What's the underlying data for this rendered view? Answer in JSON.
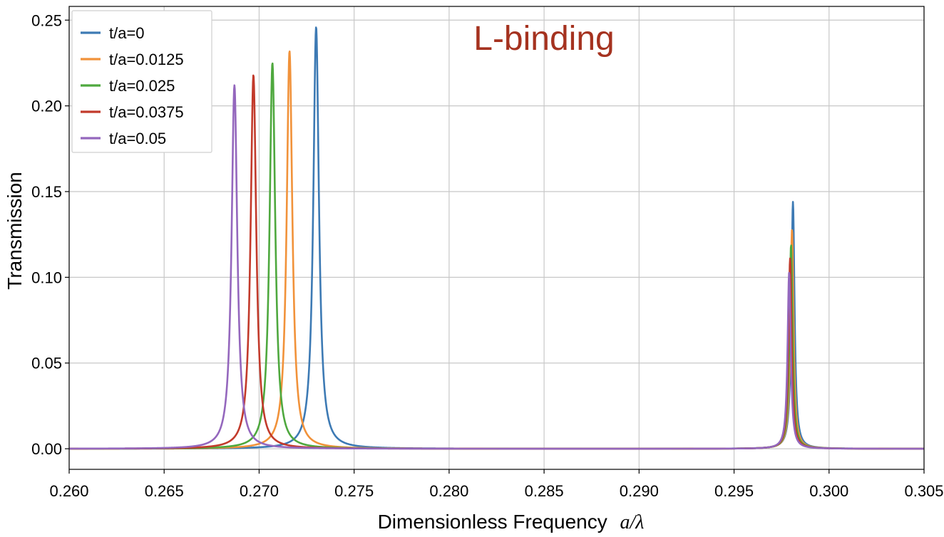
{
  "chart_data": {
    "type": "line",
    "title": "",
    "annotation": {
      "text": "L-binding",
      "color": "#a5321f"
    },
    "xlabel": "Dimensionless Frequency",
    "xlabel_math": "a/λ",
    "ylabel": "Transmission",
    "xlim": [
      0.26,
      0.305
    ],
    "ylim": [
      -0.012,
      0.258
    ],
    "x_ticks": [
      0.26,
      0.265,
      0.27,
      0.275,
      0.28,
      0.285,
      0.29,
      0.295,
      0.3,
      0.305
    ],
    "x_tick_labels": [
      "0.260",
      "0.265",
      "0.270",
      "0.275",
      "0.280",
      "0.285",
      "0.290",
      "0.295",
      "0.300",
      "0.305"
    ],
    "y_ticks": [
      0.0,
      0.05,
      0.1,
      0.15,
      0.2,
      0.25
    ],
    "y_tick_labels": [
      "0.00",
      "0.05",
      "0.10",
      "0.15",
      "0.20",
      "0.25"
    ],
    "grid": true,
    "legend_position": "top-left",
    "series": [
      {
        "name": "t/a=0",
        "color": "#3d7ab4",
        "peaks": [
          {
            "x": 0.273,
            "y": 0.246,
            "width": 0.00018
          },
          {
            "x": 0.2981,
            "y": 0.144,
            "width": 0.0001
          }
        ]
      },
      {
        "name": "t/a=0.0125",
        "color": "#f1923a",
        "peaks": [
          {
            "x": 0.2716,
            "y": 0.232,
            "width": 0.00018
          },
          {
            "x": 0.29805,
            "y": 0.128,
            "width": 0.0001
          }
        ]
      },
      {
        "name": "t/a=0.025",
        "color": "#4ea83e",
        "peaks": [
          {
            "x": 0.2707,
            "y": 0.225,
            "width": 0.00018
          },
          {
            "x": 0.298,
            "y": 0.119,
            "width": 0.0001
          }
        ]
      },
      {
        "name": "t/a=0.0375",
        "color": "#c23a2b",
        "peaks": [
          {
            "x": 0.2697,
            "y": 0.218,
            "width": 0.00018
          },
          {
            "x": 0.29795,
            "y": 0.111,
            "width": 0.0001
          }
        ]
      },
      {
        "name": "t/a=0.05",
        "color": "#9467bd",
        "peaks": [
          {
            "x": 0.2687,
            "y": 0.212,
            "width": 0.00018
          },
          {
            "x": 0.2979,
            "y": 0.103,
            "width": 0.0001
          }
        ]
      }
    ]
  }
}
